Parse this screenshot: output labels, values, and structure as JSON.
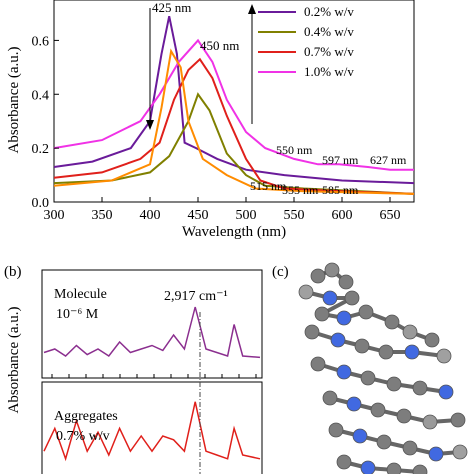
{
  "panel_a": {
    "ylabel": "Absorbance (a.u.)",
    "xlabel": "Wavelength (nm)",
    "legend": [
      {
        "text": "0.2% w/v",
        "color": "#6a1b9a"
      },
      {
        "text": "0.4% w/v",
        "color": "#808000"
      },
      {
        "text": "0.7% w/v",
        "color": "#e0201b"
      },
      {
        "text": "1.0% w/v",
        "color": "#f032e6"
      }
    ],
    "annotations": [
      "425 nm",
      "450 nm",
      "550 nm",
      "597 nm",
      "627 nm",
      "515 nm",
      "555 nm",
      "585 nm"
    ]
  },
  "panel_b": {
    "label": "(b)",
    "ylabel": "Absorbance (a.u.)",
    "top_text": [
      "Molecule",
      "10⁻⁶ M"
    ],
    "peak_label": "2,917 cm⁻¹",
    "bottom_text": [
      "Aggregates",
      "0.7% w/v"
    ]
  },
  "panel_c": {
    "label": "(c)"
  },
  "chart_data": [
    {
      "type": "line",
      "xlabel": "Wavelength (nm)",
      "ylabel": "Absorbance (a.u.)",
      "xlim": [
        300,
        675
      ],
      "ylim": [
        0,
        0.75
      ],
      "xticks": [
        300,
        350,
        400,
        450,
        500,
        550,
        600,
        650
      ],
      "yticks": [
        0.0,
        0.2,
        0.4,
        0.6
      ],
      "legend_position": "top-right",
      "series": [
        {
          "name": "0.2% w/v",
          "color": "#6a1b9a",
          "points": [
            [
              300,
              0.13
            ],
            [
              340,
              0.15
            ],
            [
              380,
              0.2
            ],
            [
              400,
              0.3
            ],
            [
              412,
              0.55
            ],
            [
              420,
              0.69
            ],
            [
              428,
              0.55
            ],
            [
              436,
              0.22
            ],
            [
              448,
              0.2
            ],
            [
              470,
              0.16
            ],
            [
              500,
              0.12
            ],
            [
              540,
              0.1
            ],
            [
              600,
              0.08
            ],
            [
              675,
              0.07
            ]
          ]
        },
        {
          "name": "0.4% w/v",
          "color": "#808000",
          "points": [
            [
              300,
              0.07
            ],
            [
              360,
              0.08
            ],
            [
              400,
              0.11
            ],
            [
              420,
              0.17
            ],
            [
              440,
              0.3
            ],
            [
              450,
              0.4
            ],
            [
              462,
              0.34
            ],
            [
              480,
              0.18
            ],
            [
              500,
              0.1
            ],
            [
              520,
              0.06
            ],
            [
              560,
              0.05
            ],
            [
              620,
              0.04
            ],
            [
              675,
              0.03
            ]
          ]
        },
        {
          "name": "0.7% w/v",
          "color": "#e0201b",
          "points": [
            [
              300,
              0.09
            ],
            [
              350,
              0.11
            ],
            [
              390,
              0.16
            ],
            [
              410,
              0.22
            ],
            [
              425,
              0.38
            ],
            [
              440,
              0.49
            ],
            [
              452,
              0.53
            ],
            [
              465,
              0.46
            ],
            [
              480,
              0.32
            ],
            [
              500,
              0.16
            ],
            [
              515,
              0.08
            ],
            [
              540,
              0.05
            ],
            [
              600,
              0.04
            ],
            [
              675,
              0.03
            ]
          ]
        },
        {
          "name": "1.0% w/v",
          "color": "#f032e6",
          "points": [
            [
              300,
              0.2
            ],
            [
              350,
              0.23
            ],
            [
              390,
              0.3
            ],
            [
              410,
              0.4
            ],
            [
              430,
              0.52
            ],
            [
              450,
              0.6
            ],
            [
              465,
              0.52
            ],
            [
              480,
              0.38
            ],
            [
              500,
              0.26
            ],
            [
              520,
              0.2
            ],
            [
              550,
              0.16
            ],
            [
              575,
              0.14
            ],
            [
              597,
              0.14
            ],
            [
              627,
              0.13
            ],
            [
              650,
              0.12
            ],
            [
              675,
              0.12
            ]
          ]
        },
        {
          "color": "#ff8c00",
          "points": [
            [
              300,
              0.06
            ],
            [
              360,
              0.08
            ],
            [
              400,
              0.14
            ],
            [
              412,
              0.35
            ],
            [
              422,
              0.56
            ],
            [
              432,
              0.5
            ],
            [
              440,
              0.3
            ],
            [
              455,
              0.16
            ],
            [
              480,
              0.1
            ],
            [
              510,
              0.05
            ],
            [
              560,
              0.04
            ],
            [
              675,
              0.03
            ]
          ]
        }
      ]
    },
    {
      "type": "line",
      "ylabel": "Absorbance (a.u.)",
      "series": [
        {
          "color": "#8b2f8f",
          "points": [
            [
              0,
              0.25
            ],
            [
              5,
              0.3
            ],
            [
              10,
              0.2
            ],
            [
              15,
              0.35
            ],
            [
              20,
              0.22
            ],
            [
              25,
              0.3
            ],
            [
              30,
              0.2
            ],
            [
              35,
              0.4
            ],
            [
              40,
              0.25
            ],
            [
              45,
              0.3
            ],
            [
              50,
              0.35
            ],
            [
              55,
              0.28
            ],
            [
              60,
              0.5
            ],
            [
              65,
              0.3
            ],
            [
              70,
              0.9
            ],
            [
              75,
              0.3
            ],
            [
              80,
              0.25
            ],
            [
              85,
              0.2
            ],
            [
              88,
              0.65
            ],
            [
              92,
              0.2
            ],
            [
              100,
              0.18
            ]
          ]
        },
        {
          "color": "#e0201b",
          "points": [
            [
              0,
              0.3
            ],
            [
              5,
              0.6
            ],
            [
              10,
              0.2
            ],
            [
              15,
              0.7
            ],
            [
              20,
              0.3
            ],
            [
              25,
              0.55
            ],
            [
              30,
              0.25
            ],
            [
              35,
              0.6
            ],
            [
              40,
              0.3
            ],
            [
              45,
              0.5
            ],
            [
              50,
              0.3
            ],
            [
              55,
              0.5
            ],
            [
              60,
              0.45
            ],
            [
              65,
              0.3
            ],
            [
              70,
              0.95
            ],
            [
              75,
              0.3
            ],
            [
              80,
              0.25
            ],
            [
              85,
              0.2
            ],
            [
              88,
              0.6
            ],
            [
              92,
              0.25
            ],
            [
              100,
              0.2
            ]
          ]
        }
      ]
    }
  ]
}
